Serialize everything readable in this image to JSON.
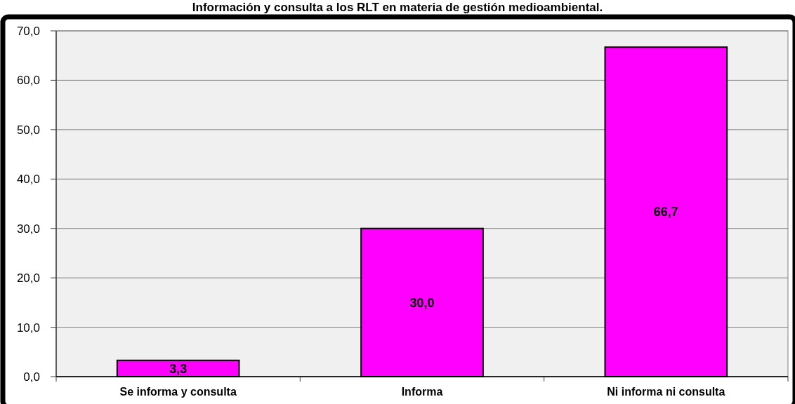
{
  "chart_data": {
    "type": "bar",
    "title": "Información y consulta a los RLT en materia de gestión medioambiental.",
    "categories": [
      "Se informa y consulta",
      "Informa",
      "Ni informa ni consulta"
    ],
    "values": [
      3.3,
      30.0,
      66.7
    ],
    "color": "#ff00ff",
    "value_labels": [
      "3,3",
      "30,0",
      "66,7"
    ],
    "ylim": [
      0,
      70
    ],
    "yticks": [
      {
        "value": 0,
        "label": "0,0"
      },
      {
        "value": 10,
        "label": "10,0"
      },
      {
        "value": 20,
        "label": "20,0"
      },
      {
        "value": 30,
        "label": "30,0"
      },
      {
        "value": 40,
        "label": "40,0"
      },
      {
        "value": 50,
        "label": "50,0"
      },
      {
        "value": 60,
        "label": "60,0"
      },
      {
        "value": 70,
        "label": "70,0"
      }
    ],
    "grid": "y"
  }
}
